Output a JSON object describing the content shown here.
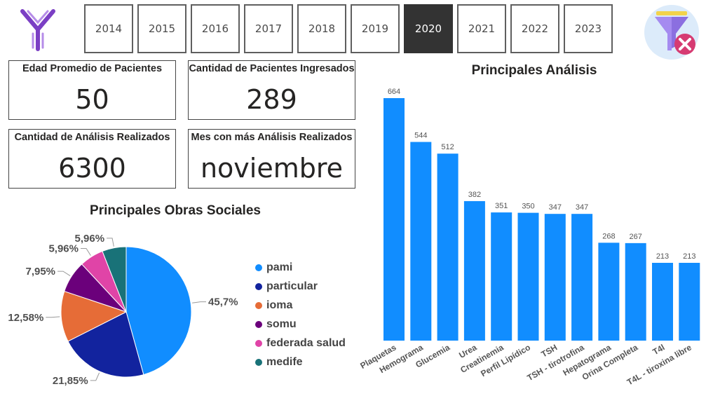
{
  "header": {
    "logo_icon": "antibody-y-icon",
    "years": [
      {
        "label": "2014",
        "selected": false
      },
      {
        "label": "2015",
        "selected": false
      },
      {
        "label": "2016",
        "selected": false
      },
      {
        "label": "2017",
        "selected": false
      },
      {
        "label": "2018",
        "selected": false
      },
      {
        "label": "2019",
        "selected": false
      },
      {
        "label": "2020",
        "selected": true
      },
      {
        "label": "2021",
        "selected": false
      },
      {
        "label": "2022",
        "selected": false
      },
      {
        "label": "2023",
        "selected": false
      }
    ],
    "clear_filter_icon": "filter-clear-icon"
  },
  "kpis": {
    "edad": {
      "title": "Edad Promedio de Pacientes",
      "value": "50"
    },
    "pacientes": {
      "title": "Cantidad de Pacientes Ingresados",
      "value": "289"
    },
    "analisis": {
      "title": "Cantidad de Análisis Realizados",
      "value": "6300"
    },
    "mes": {
      "title": "Mes con más Análisis Realizados",
      "value": "noviembre"
    }
  },
  "colors": {
    "bar": "#118DFF",
    "accent_purple": "#7B3FC4"
  },
  "chart_data": [
    {
      "type": "pie",
      "title": "Principales Obras Sociales",
      "legend_position": "right",
      "slices": [
        {
          "label": "pami",
          "value": 45.7,
          "display": "45,7%",
          "color": "#118DFF"
        },
        {
          "label": "particular",
          "value": 21.85,
          "display": "21,85%",
          "color": "#12239E"
        },
        {
          "label": "ioma",
          "value": 12.58,
          "display": "12,58%",
          "color": "#E66C37"
        },
        {
          "label": "somu",
          "value": 7.95,
          "display": "7,95%",
          "color": "#6B007B"
        },
        {
          "label": "federada salud",
          "value": 5.96,
          "display": "5,96%",
          "color": "#E044A7"
        },
        {
          "label": "medife",
          "value": 5.96,
          "display": "5,96%",
          "color": "#197278"
        }
      ]
    },
    {
      "type": "bar",
      "title": "Principales Análisis",
      "categories": [
        "Plaquetas",
        "Hemograma",
        "Glucemia",
        "Urea",
        "Creatinemia",
        "Perfil Lipídico",
        "TSH",
        "TSH - tirotrofina",
        "Hepatograma",
        "Orina Completa",
        "T4l",
        "T4L - tiroxina libre"
      ],
      "values": [
        664,
        544,
        512,
        382,
        351,
        350,
        347,
        347,
        268,
        267,
        213,
        213
      ],
      "ylim": [
        0,
        664
      ],
      "grid": false
    }
  ]
}
